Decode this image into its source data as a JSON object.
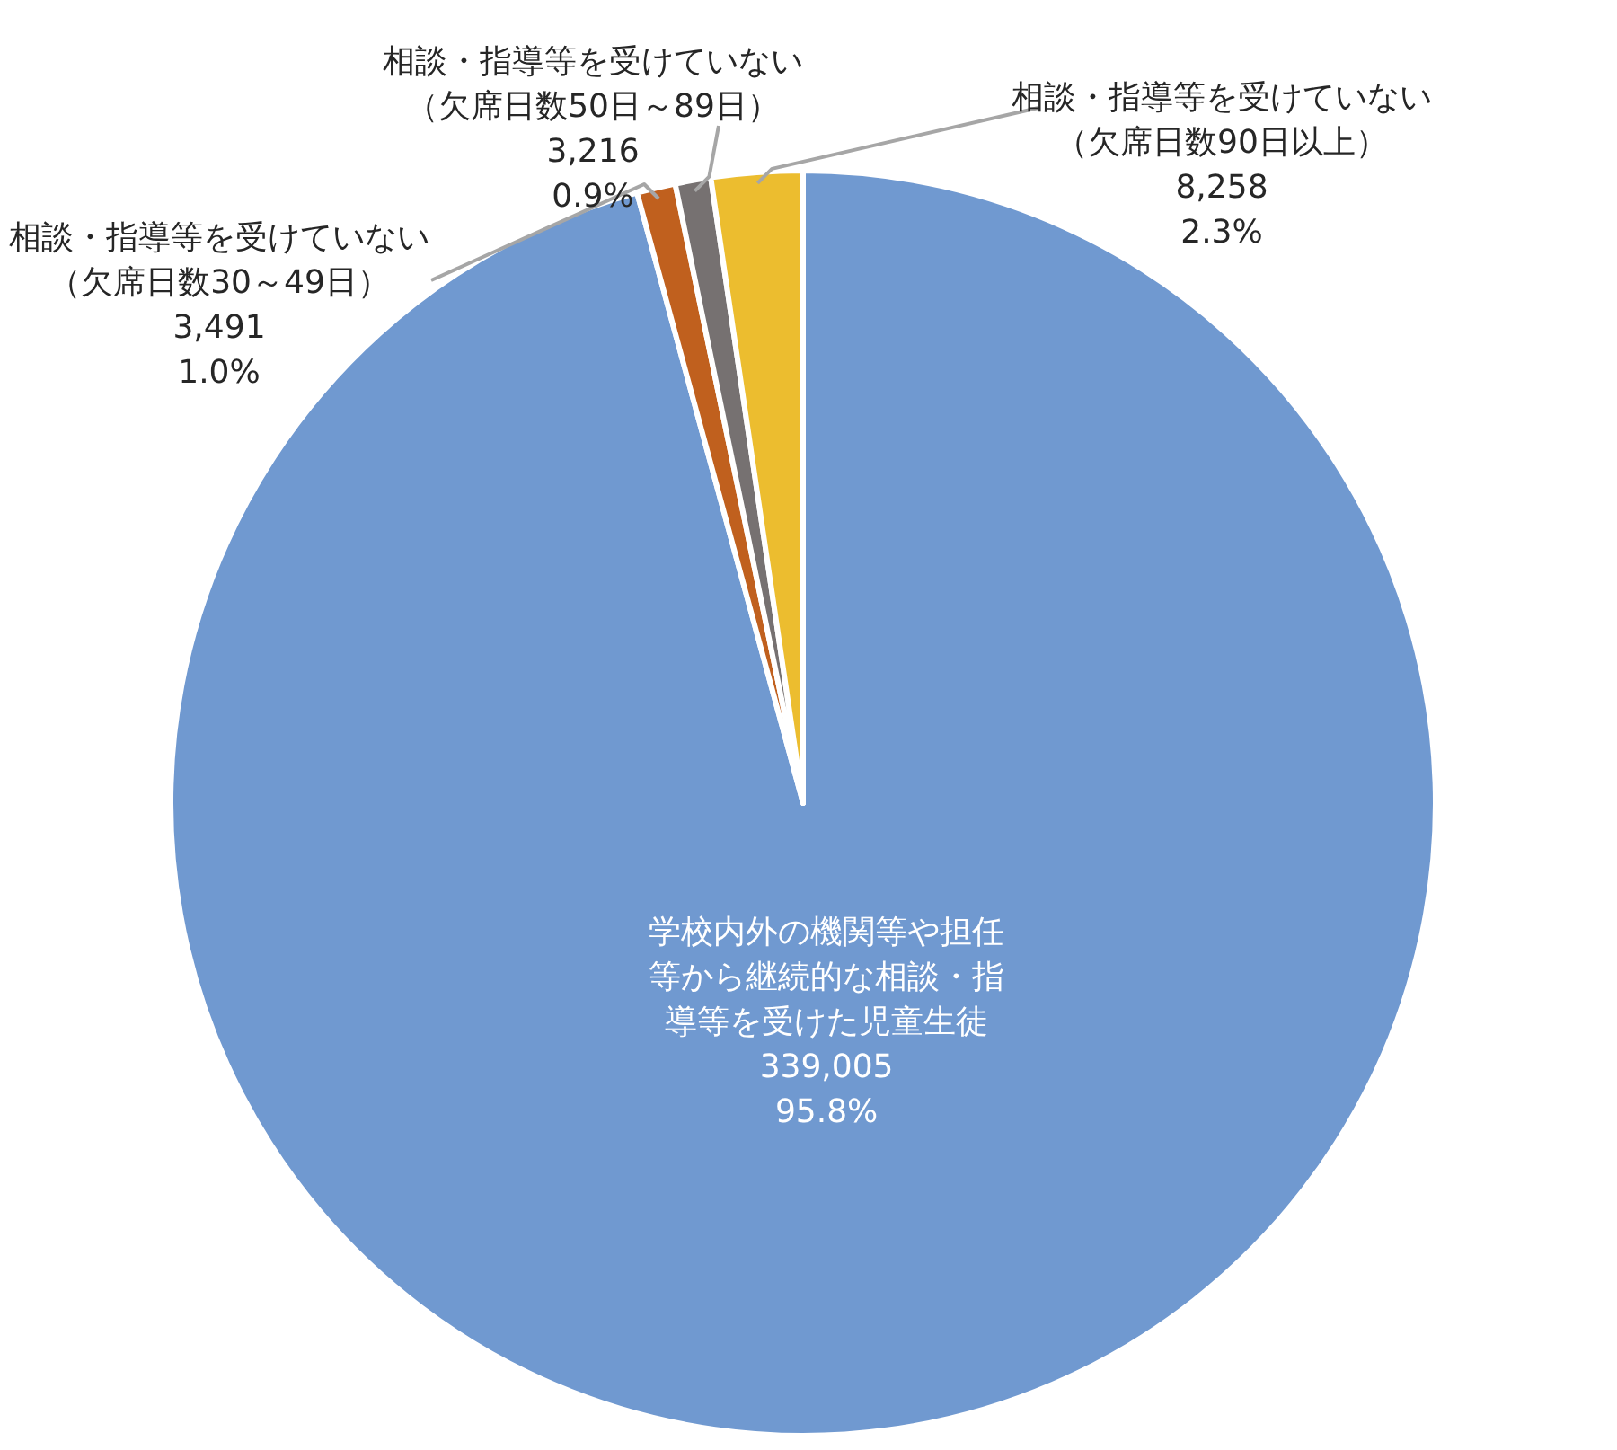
{
  "chart_data": {
    "type": "pie",
    "categories": [
      "学校内外の機関等や担任等から継続的な相談・指導等を受けた児童生徒",
      "相談・指導等を受けていない（欠席日数30～49日）",
      "相談・指導等を受けていない（欠席日数50日～89日）",
      "相談・指導等を受けていない（欠席日数90日以上）"
    ],
    "values": [
      339005,
      3491,
      3216,
      8258
    ],
    "colors": [
      "#7099d0",
      "#c0601e",
      "#767171",
      "#ecbd2f"
    ],
    "value_labels": [
      "339,005\n95.8%",
      "3,491\n1.0%",
      "3,216\n0.9%",
      "8,258\n2.3%"
    ]
  }
}
